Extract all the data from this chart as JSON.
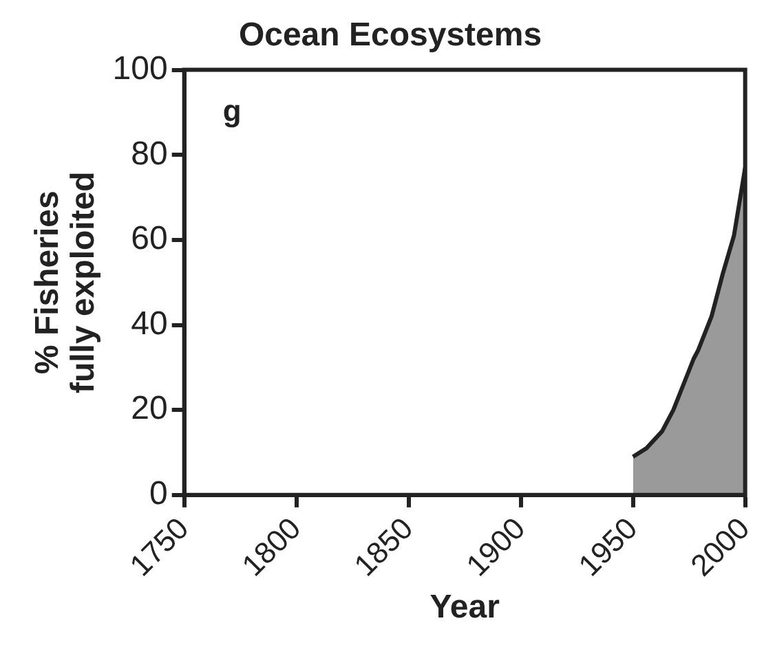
{
  "chart_data": {
    "type": "area",
    "title": "Ocean Ecosystems",
    "xlabel": "Year",
    "ylabel": "% Fisheries fully exploited",
    "annotations": [
      "g"
    ],
    "x": [
      1950,
      1956,
      1963,
      1968,
      1974,
      1977,
      1979,
      1985,
      1990,
      1995,
      2000
    ],
    "series": [
      {
        "color": "#9a9a9a",
        "values": [
          9,
          11,
          15,
          20,
          28,
          32,
          34,
          42,
          52,
          61,
          77
        ]
      }
    ],
    "xlim": [
      1750,
      2000
    ],
    "xticks": [
      1750,
      1800,
      1850,
      1900,
      1950,
      2000
    ],
    "ylim": [
      0,
      100
    ],
    "yticks": [
      0,
      20,
      40,
      60,
      80,
      100
    ],
    "grid": false,
    "legend": false
  }
}
